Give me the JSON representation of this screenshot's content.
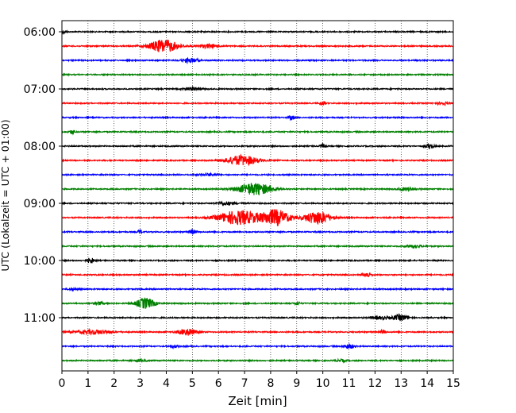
{
  "chart_data": {
    "type": "line",
    "title": "",
    "xlabel": "Zeit  [min]",
    "ylabel": "UTC (Lokalzeit = UTC + 01:00)",
    "xlim": [
      0,
      15
    ],
    "x_ticks": [
      0,
      1,
      2,
      3,
      4,
      5,
      6,
      7,
      8,
      9,
      10,
      11,
      12,
      13,
      14,
      15
    ],
    "x_tick_labels": [
      "0",
      "1",
      "2",
      "3",
      "4",
      "5",
      "6",
      "7",
      "8",
      "9",
      "10",
      "11",
      "12",
      "13",
      "14",
      "15"
    ],
    "y_tick_labels": [
      "06:00",
      "07:00",
      "08:00",
      "09:00",
      "10:00",
      "11:00"
    ],
    "grid": "vertical dotted",
    "trace_interval_min": 15,
    "trace_colors": [
      "#000000",
      "#ff0000",
      "#0000ff",
      "#008000"
    ],
    "traces": [
      {
        "start": "06:00",
        "color": "#000000",
        "events": [
          {
            "t": 0.1,
            "amp": 0.2,
            "w": 0.1
          }
        ]
      },
      {
        "start": "06:15",
        "color": "#ff0000",
        "events": [
          {
            "t": 3.9,
            "amp": 0.9,
            "w": 0.55
          },
          {
            "t": 5.6,
            "amp": 0.25,
            "w": 0.4
          }
        ]
      },
      {
        "start": "06:30",
        "color": "#0000ff",
        "events": [
          {
            "t": 4.9,
            "amp": 0.3,
            "w": 0.3
          }
        ]
      },
      {
        "start": "06:45",
        "color": "#008000",
        "events": []
      },
      {
        "start": "07:00",
        "color": "#000000",
        "events": [
          {
            "t": 5.0,
            "amp": 0.2,
            "w": 0.3
          }
        ]
      },
      {
        "start": "07:15",
        "color": "#ff0000",
        "events": [
          {
            "t": 10.0,
            "amp": 0.3,
            "w": 0.1
          },
          {
            "t": 14.6,
            "amp": 0.2,
            "w": 0.2
          }
        ]
      },
      {
        "start": "07:30",
        "color": "#0000ff",
        "events": [
          {
            "t": 8.8,
            "amp": 0.3,
            "w": 0.1
          }
        ]
      },
      {
        "start": "07:45",
        "color": "#008000",
        "events": [
          {
            "t": 0.4,
            "amp": 0.3,
            "w": 0.1
          }
        ]
      },
      {
        "start": "08:00",
        "color": "#000000",
        "events": [
          {
            "t": 10.0,
            "amp": 0.35,
            "w": 0.1
          },
          {
            "t": 14.1,
            "amp": 0.35,
            "w": 0.15
          }
        ]
      },
      {
        "start": "08:15",
        "color": "#ff0000",
        "events": [
          {
            "t": 6.9,
            "amp": 0.7,
            "w": 0.6
          }
        ]
      },
      {
        "start": "08:30",
        "color": "#0000ff",
        "events": [
          {
            "t": 5.6,
            "amp": 0.15,
            "w": 0.4
          }
        ]
      },
      {
        "start": "08:45",
        "color": "#008000",
        "events": [
          {
            "t": 7.4,
            "amp": 0.85,
            "w": 0.65
          },
          {
            "t": 13.2,
            "amp": 0.2,
            "w": 0.3
          }
        ]
      },
      {
        "start": "09:00",
        "color": "#000000",
        "events": [
          {
            "t": 6.3,
            "amp": 0.2,
            "w": 0.4
          }
        ]
      },
      {
        "start": "09:15",
        "color": "#ff0000",
        "events": [
          {
            "t": 6.8,
            "amp": 1.0,
            "w": 0.8
          },
          {
            "t": 8.2,
            "amp": 1.1,
            "w": 0.5
          },
          {
            "t": 9.8,
            "amp": 0.9,
            "w": 0.5
          }
        ]
      },
      {
        "start": "09:30",
        "color": "#0000ff",
        "events": [
          {
            "t": 3.0,
            "amp": 0.3,
            "w": 0.1
          },
          {
            "t": 5.0,
            "amp": 0.3,
            "w": 0.15
          }
        ]
      },
      {
        "start": "09:45",
        "color": "#008000",
        "events": [
          {
            "t": 13.5,
            "amp": 0.2,
            "w": 0.3
          }
        ]
      },
      {
        "start": "10:00",
        "color": "#000000",
        "events": [
          {
            "t": 1.1,
            "amp": 0.35,
            "w": 0.15
          }
        ]
      },
      {
        "start": "10:15",
        "color": "#ff0000",
        "events": [
          {
            "t": 11.7,
            "amp": 0.35,
            "w": 0.15
          }
        ]
      },
      {
        "start": "10:30",
        "color": "#0000ff",
        "events": [
          {
            "t": 0.4,
            "amp": 0.15,
            "w": 0.2
          }
        ]
      },
      {
        "start": "10:45",
        "color": "#008000",
        "events": [
          {
            "t": 1.4,
            "amp": 0.2,
            "w": 0.2
          },
          {
            "t": 3.2,
            "amp": 0.75,
            "w": 0.35
          },
          {
            "t": 9.0,
            "amp": 0.2,
            "w": 0.1
          }
        ]
      },
      {
        "start": "11:00",
        "color": "#000000",
        "events": [
          {
            "t": 13.0,
            "amp": 0.4,
            "w": 0.3
          },
          {
            "t": 12.2,
            "amp": 0.2,
            "w": 0.4
          }
        ]
      },
      {
        "start": "11:15",
        "color": "#ff0000",
        "events": [
          {
            "t": 1.2,
            "amp": 0.3,
            "w": 0.6
          },
          {
            "t": 4.8,
            "amp": 0.45,
            "w": 0.35
          },
          {
            "t": 12.3,
            "amp": 0.25,
            "w": 0.1
          }
        ]
      },
      {
        "start": "11:30",
        "color": "#0000ff",
        "events": [
          {
            "t": 11.0,
            "amp": 0.3,
            "w": 0.2
          },
          {
            "t": 4.3,
            "amp": 0.15,
            "w": 0.2
          }
        ]
      },
      {
        "start": "11:45",
        "color": "#008000",
        "events": [
          {
            "t": 3.0,
            "amp": 0.15,
            "w": 0.2
          },
          {
            "t": 10.7,
            "amp": 0.15,
            "w": 0.2
          }
        ]
      }
    ]
  }
}
